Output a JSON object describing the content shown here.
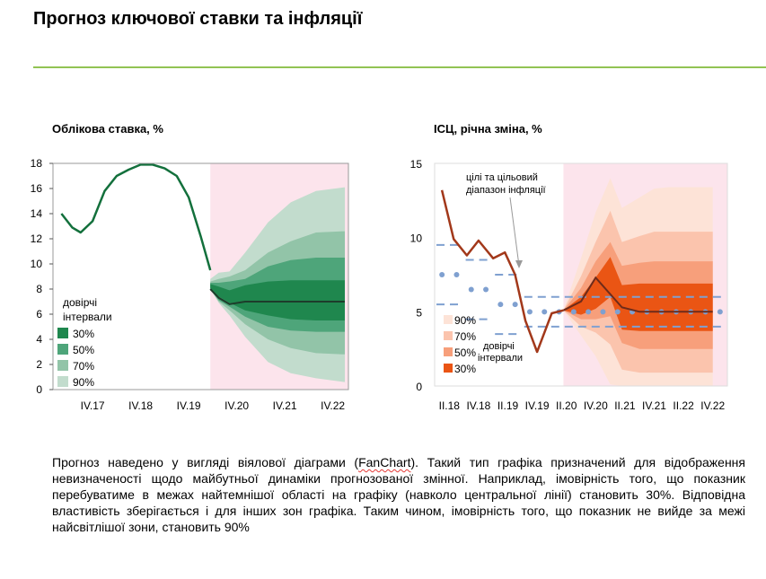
{
  "page": {
    "title": "Прогноз ключової ставки та інфляції",
    "description": {
      "before": "Прогноз наведено у вигляді віялової діаграми (",
      "term": "FanChart",
      "after": "). Такий тип графіка призначений для відображення невизначеності щодо майбутньої динаміки прогнозованої змінної. Наприклад, імовірність того, що показник перебуватиме в межах найтемнішої області на графіку (навколо центральної лінії) становить 30%. Відповідна властивість зберігається і для інших зон графіка. Таким чином, імовірність того, що показник не вийде за межі найсвітлішої зони, становить 90%"
    },
    "colors": {
      "rule": "#92c353",
      "forecast_shade": "#fce4ec"
    }
  },
  "chart_data": [
    {
      "type": "area",
      "title": "Облікова ставка, %",
      "ylim": [
        0,
        18
      ],
      "yticks": [
        0,
        2,
        4,
        6,
        8,
        10,
        12,
        14,
        16,
        18
      ],
      "xticks": [
        "IV.17",
        "IV.18",
        "IV.19",
        "IV.20",
        "IV.21",
        "IV.22"
      ],
      "xtick_positions": [
        1,
        5,
        9,
        13,
        17,
        21
      ],
      "xlim": [
        -2.3,
        22.3
      ],
      "forecast_start": 10.8,
      "history": {
        "x": [
          -1.6,
          -0.7,
          0,
          1,
          2,
          3,
          4,
          5,
          6,
          7,
          8,
          9,
          10,
          10.8
        ],
        "y": [
          14.0,
          12.9,
          12.5,
          13.4,
          15.8,
          17.0,
          17.5,
          17.9,
          17.9,
          17.6,
          17.0,
          15.3,
          12.2,
          9.5
        ]
      },
      "central": {
        "x": [
          10.8,
          11.5,
          12.4,
          13.7,
          16,
          19,
          22
        ],
        "y": [
          8.0,
          7.3,
          6.8,
          7.0,
          7.0,
          7.0,
          7.0
        ]
      },
      "bands": [
        {
          "level": "90%",
          "color": "#c2dccd",
          "upper": [
            8.8,
            9.3,
            9.4,
            10.9,
            13.3,
            14.9,
            15.8,
            16.1
          ],
          "lower": [
            8.0,
            6.9,
            5.9,
            4.2,
            2.2,
            1.3,
            0.9,
            0.6
          ]
        },
        {
          "level": "70%",
          "color": "#92c4a8",
          "upper": [
            8.6,
            8.8,
            9.0,
            9.5,
            10.9,
            11.8,
            12.5,
            12.6
          ],
          "lower": [
            8.0,
            7.0,
            6.3,
            5.2,
            4.0,
            3.3,
            2.9,
            2.8
          ]
        },
        {
          "level": "50%",
          "color": "#4ea57a",
          "upper": [
            8.5,
            8.5,
            8.6,
            8.8,
            9.8,
            10.3,
            10.5,
            10.5
          ],
          "lower": [
            8.0,
            7.1,
            6.6,
            5.8,
            5.0,
            4.7,
            4.6,
            4.6
          ]
        },
        {
          "level": "30%",
          "color": "#1f874e",
          "upper": [
            8.4,
            8.2,
            7.9,
            8.3,
            8.6,
            8.7,
            8.7,
            8.7
          ],
          "lower": [
            8.1,
            7.4,
            6.9,
            6.3,
            5.9,
            5.6,
            5.5,
            5.5
          ]
        }
      ],
      "band_x": [
        10.8,
        11.5,
        12.4,
        13.7,
        15.6,
        17.5,
        19.6,
        22
      ],
      "line_color": "#13703c",
      "legend": {
        "title": "довірчі інтервали",
        "items": [
          "30%",
          "50%",
          "70%",
          "90%"
        ],
        "placement": "bottom-left"
      },
      "grid": false
    },
    {
      "type": "area",
      "title": "ІСЦ, річна зміна, %",
      "ylim": [
        0,
        15
      ],
      "yticks": [
        0,
        5,
        10,
        15
      ],
      "xticks": [
        "II.18",
        "IV.18",
        "II.19",
        "IV.19",
        "II.20",
        "IV.20",
        "II.21",
        "IV.21",
        "II.22",
        "IV.22"
      ],
      "xtick_positions": [
        0,
        2,
        4,
        6,
        8,
        10,
        12,
        14,
        16,
        18
      ],
      "xlim": [
        -1,
        19
      ],
      "forecast_start": 7.8,
      "actual": {
        "x": [
          -0.5,
          0.3,
          1.2,
          2.0,
          3.0,
          3.8,
          4.5,
          5.2,
          6.0,
          7.0,
          7.8
        ],
        "y": [
          13.2,
          9.9,
          8.8,
          9.8,
          8.6,
          9.0,
          7.5,
          4.4,
          2.3,
          4.9,
          5.1
        ]
      },
      "central": {
        "x": [
          7.8,
          9,
          10,
          11.8,
          13,
          14,
          15,
          16,
          17,
          18
        ],
        "y": [
          5.1,
          5.7,
          7.3,
          5.3,
          5.0,
          5.0,
          5.0,
          5.0,
          5.0,
          5.0
        ]
      },
      "bands": [
        {
          "level": "90%",
          "color": "#fde3d7",
          "upper": [
            5.1,
            8.6,
            11.7,
            14.0,
            12.0,
            12.7,
            13.3,
            13.4,
            13.4,
            13.4
          ],
          "lower": [
            5.1,
            3.4,
            2.0,
            0.1,
            -1.6,
            -1.7,
            -1.7,
            -1.7,
            -1.7,
            -1.7
          ]
        },
        {
          "level": "70%",
          "color": "#fbc4ad",
          "upper": [
            5.1,
            7.4,
            9.7,
            11.8,
            9.7,
            10.1,
            10.4,
            10.4,
            10.4,
            10.4
          ],
          "lower": [
            5.1,
            4.0,
            3.6,
            2.8,
            1.1,
            0.9,
            0.9,
            0.9,
            0.9,
            0.9
          ]
        },
        {
          "level": "50%",
          "color": "#f79f7b",
          "upper": [
            5.1,
            6.6,
            8.4,
            9.7,
            8.1,
            8.3,
            8.4,
            8.4,
            8.4,
            8.4
          ],
          "lower": [
            5.1,
            4.5,
            4.5,
            4.7,
            2.9,
            2.5,
            2.5,
            2.5,
            2.5,
            2.5
          ]
        },
        {
          "level": "30%",
          "color": "#ea5514",
          "upper": [
            5.1,
            6.0,
            7.3,
            8.7,
            6.8,
            6.9,
            6.9,
            6.9,
            6.9,
            6.9
          ],
          "lower": [
            5.1,
            4.8,
            5.2,
            6.0,
            3.8,
            3.7,
            3.7,
            3.7,
            3.7,
            3.7
          ]
        }
      ],
      "band_x": [
        7.8,
        9,
        10,
        11,
        11.8,
        13,
        14,
        15,
        16,
        18
      ],
      "target_years": [
        {
          "x0": -1.0,
          "x1": 1.0,
          "center": 7.5,
          "upper": 9.5,
          "lower": 5.5
        },
        {
          "x0": 1.0,
          "x1": 3.0,
          "center": 6.5,
          "upper": 8.5,
          "lower": 4.5
        },
        {
          "x0": 3.0,
          "x1": 5.0,
          "center": 5.5,
          "upper": 7.5,
          "lower": 3.5
        },
        {
          "x0": 5.0,
          "x1": 19.0,
          "center": 5.0,
          "upper": 6.0,
          "lower": 4.0
        }
      ],
      "target_label": "цілі та цільовий діапазон інфляції",
      "line_color": "#a2381a",
      "target_color": "#7fa0d0",
      "legend": {
        "title": "довірчі інтервали",
        "items": [
          "90%",
          "70%",
          "50%",
          "30%"
        ],
        "placement": "bottom-left"
      },
      "grid": false
    }
  ]
}
